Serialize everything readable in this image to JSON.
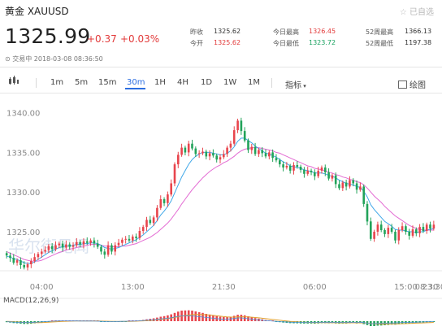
{
  "header": {
    "title": "黄金 XAUUSD",
    "self_select": "☆ 已自选",
    "price": "1325.99",
    "change": "+0.37",
    "change_pct": "+0.03%",
    "stats": [
      {
        "label": "昨收",
        "value": "1325.62",
        "tone": "normal"
      },
      {
        "label": "今开",
        "value": "1325.62",
        "tone": "red"
      },
      {
        "label": "今日最高",
        "value": "1326.45",
        "tone": "red"
      },
      {
        "label": "今日最低",
        "value": "1323.72",
        "tone": "green"
      },
      {
        "label": "52周最高",
        "value": "1366.13",
        "tone": "normal"
      },
      {
        "label": "52周最低",
        "value": "1197.38",
        "tone": "normal"
      }
    ],
    "status": "交易中 2018-03-08 08:36:50"
  },
  "toolbar": {
    "intervals": [
      "1m",
      "5m",
      "15m",
      "30m",
      "1H",
      "4H",
      "1D",
      "1W",
      "1M"
    ],
    "selected": "30m",
    "indicators_label": "指标",
    "draw_label": "绘图"
  },
  "chart_data": {
    "type": "candlestick",
    "instrument": "XAUUSD",
    "interval": "30m",
    "ylim": [
      1321.0,
      1341.5
    ],
    "y_ticks": [
      "1340.00",
      "1335.00",
      "1330.00",
      "1325.00"
    ],
    "x_ticks": [
      "04:00",
      "13:00",
      "21:30",
      "06:00",
      "15:00",
      "23:30",
      "08:30"
    ],
    "close": [
      1322.1,
      1321.8,
      1321.2,
      1321.5,
      1320.9,
      1320.6,
      1321.0,
      1321.4,
      1321.9,
      1322.3,
      1322.6,
      1322.8,
      1323.3,
      1322.9,
      1323.4,
      1323.6,
      1323.1,
      1323.5,
      1323.2,
      1323.4,
      1323.8,
      1323.5,
      1323.9,
      1323.7,
      1324.0,
      1323.6,
      1323.2,
      1322.6,
      1322.2,
      1323.4,
      1322.6,
      1323.4,
      1323.7,
      1324.1,
      1324.2,
      1324.0,
      1324.5,
      1324.3,
      1325.2,
      1325.7,
      1326.6,
      1326.2,
      1326.9,
      1328.1,
      1329.2,
      1328.7,
      1329.8,
      1331.2,
      1333.6,
      1334.8,
      1335.7,
      1335.1,
      1336.2,
      1335.6,
      1334.9,
      1335.0,
      1335.2,
      1334.6,
      1335.0,
      1334.7,
      1334.2,
      1334.5,
      1334.9,
      1335.7,
      1336.2,
      1337.9,
      1339.1,
      1337.8,
      1336.6,
      1335.4,
      1335.8,
      1334.9,
      1335.4,
      1335.0,
      1334.6,
      1335.1,
      1334.4,
      1334.1,
      1333.6,
      1333.2,
      1333.4,
      1332.8,
      1333.5,
      1333.3,
      1332.9,
      1332.4,
      1332.8,
      1332.6,
      1332.1,
      1332.8,
      1333.2,
      1332.6,
      1331.8,
      1332.2,
      1331.1,
      1330.6,
      1331.3,
      1330.8,
      1331.6,
      1331.2,
      1330.4,
      1330.8,
      1328.6,
      1326.4,
      1324.2,
      1325.1,
      1326.0,
      1325.3,
      1324.8,
      1325.6,
      1325.1,
      1324.0,
      1325.3,
      1325.8,
      1325.1,
      1324.6,
      1325.4,
      1324.9,
      1325.7,
      1325.2,
      1326.0,
      1325.5,
      1325.99
    ],
    "ma_fast": [
      1322.0,
      1321.9,
      1321.7,
      1321.6,
      1321.4,
      1321.2,
      1321.1,
      1321.1,
      1321.3,
      1321.6,
      1321.9,
      1322.2,
      1322.5,
      1322.7,
      1322.9,
      1323.1,
      1323.2,
      1323.3,
      1323.3,
      1323.4,
      1323.5,
      1323.5,
      1323.6,
      1323.6,
      1323.7,
      1323.7,
      1323.6,
      1323.4,
      1323.1,
      1323.0,
      1322.9,
      1323.0,
      1323.1,
      1323.3,
      1323.5,
      1323.7,
      1323.9,
      1324.1,
      1324.4,
      1324.7,
      1325.1,
      1325.5,
      1325.9,
      1326.5,
      1327.2,
      1327.7,
      1328.3,
      1329.0,
      1330.0,
      1331.0,
      1332.0,
      1332.8,
      1333.6,
      1334.2,
      1334.6,
      1334.9,
      1335.1,
      1335.1,
      1335.1,
      1335.0,
      1334.9,
      1334.8,
      1334.8,
      1335.0,
      1335.3,
      1335.8,
      1336.5,
      1336.9,
      1336.9,
      1336.6,
      1336.3,
      1335.9,
      1335.6,
      1335.3,
      1335.0,
      1334.9,
      1334.7,
      1334.5,
      1334.2,
      1333.9,
      1333.7,
      1333.4,
      1333.3,
      1333.2,
      1333.1,
      1332.9,
      1332.8,
      1332.7,
      1332.5,
      1332.5,
      1332.5,
      1332.4,
      1332.2,
      1332.1,
      1331.9,
      1331.6,
      1331.4,
      1331.2,
      1331.1,
      1331.0,
      1330.8,
      1330.7,
      1330.2,
      1329.5,
      1328.5,
      1327.9,
      1327.4,
      1326.9,
      1326.4,
      1326.1,
      1325.8,
      1325.4,
      1325.3,
      1325.3,
      1325.2,
      1325.1,
      1325.1,
      1325.0,
      1325.1,
      1325.1,
      1325.3,
      1325.4,
      1325.5
    ],
    "ma_slow": [
      1322.6,
      1322.4,
      1322.2,
      1322.0,
      1321.8,
      1321.6,
      1321.5,
      1321.4,
      1321.4,
      1321.4,
      1321.5,
      1321.7,
      1321.9,
      1322.1,
      1322.3,
      1322.5,
      1322.6,
      1322.8,
      1322.9,
      1323.0,
      1323.1,
      1323.2,
      1323.3,
      1323.4,
      1323.5,
      1323.5,
      1323.5,
      1323.4,
      1323.3,
      1323.3,
      1323.2,
      1323.2,
      1323.2,
      1323.3,
      1323.3,
      1323.4,
      1323.5,
      1323.6,
      1323.8,
      1324.0,
      1324.2,
      1324.4,
      1324.7,
      1325.0,
      1325.4,
      1325.8,
      1326.2,
      1326.7,
      1327.3,
      1327.9,
      1328.6,
      1329.2,
      1329.8,
      1330.4,
      1330.9,
      1331.4,
      1331.9,
      1332.3,
      1332.7,
      1333.0,
      1333.3,
      1333.5,
      1333.8,
      1334.0,
      1334.3,
      1334.6,
      1335.0,
      1335.3,
      1335.5,
      1335.6,
      1335.7,
      1335.7,
      1335.7,
      1335.6,
      1335.5,
      1335.4,
      1335.3,
      1335.1,
      1335.0,
      1334.8,
      1334.6,
      1334.4,
      1334.2,
      1334.0,
      1333.8,
      1333.6,
      1333.4,
      1333.3,
      1333.1,
      1333.0,
      1332.9,
      1332.8,
      1332.6,
      1332.5,
      1332.3,
      1332.2,
      1332.0,
      1331.9,
      1331.7,
      1331.6,
      1331.4,
      1331.3,
      1331.0,
      1330.6,
      1330.1,
      1329.6,
      1329.2,
      1328.8,
      1328.3,
      1327.9,
      1327.5,
      1327.1,
      1326.8,
      1326.5,
      1326.2,
      1325.9,
      1325.7,
      1325.5,
      1325.4,
      1325.3,
      1325.3,
      1325.3,
      1325.3
    ],
    "macd_label": "MACD(12,26,9)",
    "macd_hist": [
      -0.1,
      -0.14,
      -0.19,
      -0.22,
      -0.25,
      -0.28,
      -0.28,
      -0.26,
      -0.22,
      -0.18,
      -0.13,
      -0.08,
      -0.04,
      0.0,
      0.03,
      0.05,
      0.06,
      0.06,
      0.05,
      0.05,
      0.05,
      0.04,
      0.04,
      0.03,
      0.03,
      0.02,
      0.0,
      -0.03,
      -0.06,
      -0.06,
      -0.08,
      -0.07,
      -0.05,
      -0.03,
      -0.01,
      0.01,
      0.03,
      0.05,
      0.09,
      0.13,
      0.19,
      0.24,
      0.29,
      0.37,
      0.46,
      0.52,
      0.6,
      0.7,
      0.85,
      0.98,
      1.08,
      1.1,
      1.12,
      1.08,
      1.0,
      0.92,
      0.85,
      0.75,
      0.68,
      0.6,
      0.52,
      0.45,
      0.42,
      0.43,
      0.46,
      0.55,
      0.66,
      0.66,
      0.6,
      0.5,
      0.42,
      0.32,
      0.26,
      0.19,
      0.12,
      0.08,
      0.02,
      -0.04,
      -0.1,
      -0.14,
      -0.17,
      -0.2,
      -0.21,
      -0.22,
      -0.23,
      -0.24,
      -0.24,
      -0.24,
      -0.25,
      -0.23,
      -0.21,
      -0.21,
      -0.22,
      -0.21,
      -0.23,
      -0.25,
      -0.24,
      -0.24,
      -0.22,
      -0.21,
      -0.23,
      -0.22,
      -0.3,
      -0.4,
      -0.5,
      -0.5,
      -0.46,
      -0.44,
      -0.42,
      -0.38,
      -0.35,
      -0.36,
      -0.32,
      -0.27,
      -0.25,
      -0.24,
      -0.21,
      -0.2,
      -0.16,
      -0.15,
      -0.11,
      -0.1,
      -0.07
    ],
    "watermark": "华尔街见闻"
  }
}
